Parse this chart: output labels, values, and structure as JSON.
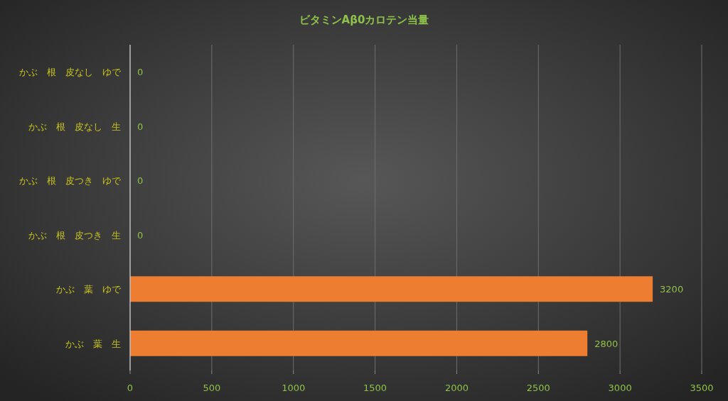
{
  "chart_data": {
    "type": "bar",
    "orientation": "horizontal",
    "title": "ビタミンAβ0カロテン当量",
    "categories": [
      "かぶ　根　皮なし　ゆで",
      "かぶ　根　皮なし　生",
      "かぶ　根　皮つき　ゆで",
      "かぶ　根　皮つき　生",
      "かぶ　葉　ゆで",
      "かぶ　葉　生"
    ],
    "values": [
      0,
      0,
      0,
      0,
      3200,
      2800
    ],
    "color": "#ed7d31",
    "xlim": [
      0,
      3500
    ],
    "xticks": [
      0,
      500,
      1000,
      1500,
      2000,
      2500,
      3000,
      3500
    ],
    "grid": "x",
    "data_labels": true
  }
}
